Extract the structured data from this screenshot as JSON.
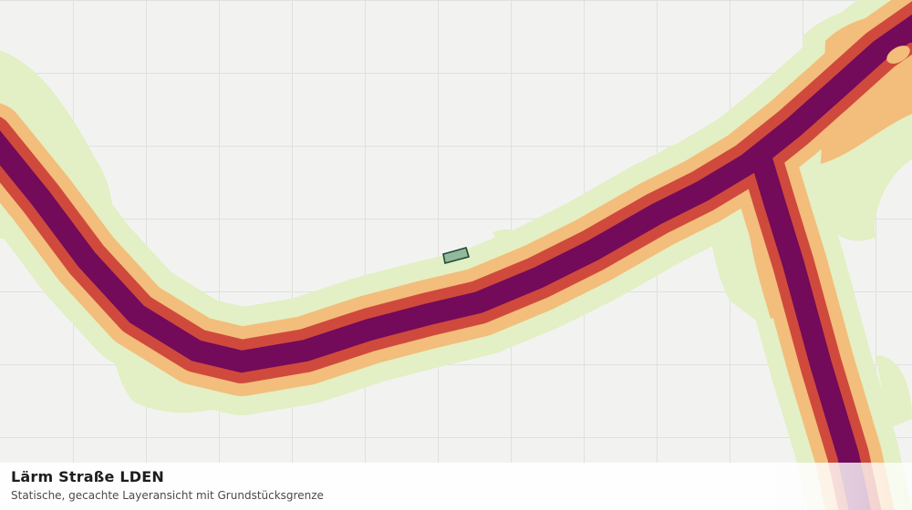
{
  "map": {
    "layer_title": "Lärm Straße LDEN",
    "layer_subtitle": "Statische, gecachte Layeransicht mit Grundstücksgrenze",
    "background_color": "#f2f3f1",
    "grid_color": "#dfe1de",
    "noise_band_colors": {
      "outer": "#e3efc4",
      "low": "#f3bd7c",
      "medium": "#cf4a3c",
      "high": "#730a5a"
    },
    "parcel_boundary": {
      "fill": "#93b89c",
      "stroke": "#1f4d33"
    }
  }
}
